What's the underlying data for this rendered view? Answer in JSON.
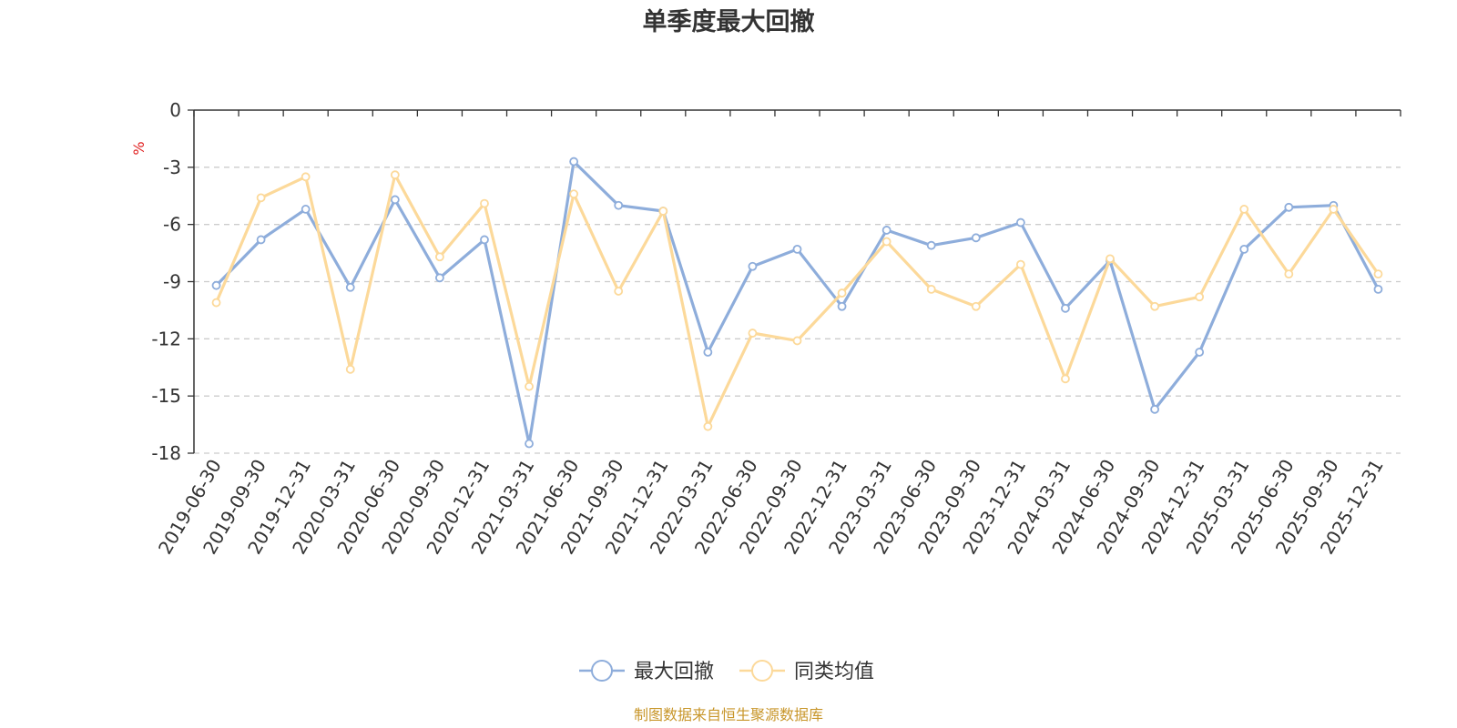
{
  "chart_data": {
    "type": "line",
    "title": "单季度最大回撤",
    "ylabel": "%",
    "ylim": [
      -18,
      0
    ],
    "yticks": [
      0,
      -3,
      -6,
      -9,
      -12,
      -15,
      -18
    ],
    "grid": true,
    "legend_position": "bottom",
    "categories": [
      "2019-06-30",
      "2019-09-30",
      "2019-12-31",
      "2020-03-31",
      "2020-06-30",
      "2020-09-30",
      "2020-12-31",
      "2021-03-31",
      "2021-06-30",
      "2021-09-30",
      "2021-12-31",
      "2022-03-31",
      "2022-06-30",
      "2022-09-30",
      "2022-12-31",
      "2023-03-31",
      "2023-06-30",
      "2023-09-30",
      "2023-12-31",
      "2024-03-31",
      "2024-06-30",
      "2024-09-30",
      "2024-12-31",
      "2025-03-31",
      "2025-06-30",
      "2025-09-30",
      "2025-12-31"
    ],
    "series": [
      {
        "name": "最大回撤",
        "color": "#8eaddb",
        "values": [
          -9.2,
          -6.8,
          -5.2,
          -9.3,
          -4.7,
          -8.8,
          -6.8,
          -17.5,
          -2.7,
          -5.0,
          -5.3,
          -12.7,
          -8.2,
          -7.3,
          -10.3,
          -6.3,
          -7.1,
          -6.7,
          -5.9,
          -10.4,
          -7.9,
          -15.7,
          -12.7,
          -7.3,
          -5.1,
          -5.0,
          -9.4
        ]
      },
      {
        "name": "同类均值",
        "color": "#fcd99a",
        "values": [
          -10.1,
          -4.6,
          -3.5,
          -13.6,
          -3.4,
          -7.7,
          -4.9,
          -14.5,
          -4.4,
          -9.5,
          -5.3,
          -16.6,
          -11.7,
          -12.1,
          -9.6,
          -6.9,
          -9.4,
          -10.3,
          -8.1,
          -14.1,
          -7.8,
          -10.3,
          -9.8,
          -5.2,
          -8.6,
          -5.2,
          -8.6
        ]
      }
    ]
  },
  "source_note": "制图数据来自恒生聚源数据库"
}
